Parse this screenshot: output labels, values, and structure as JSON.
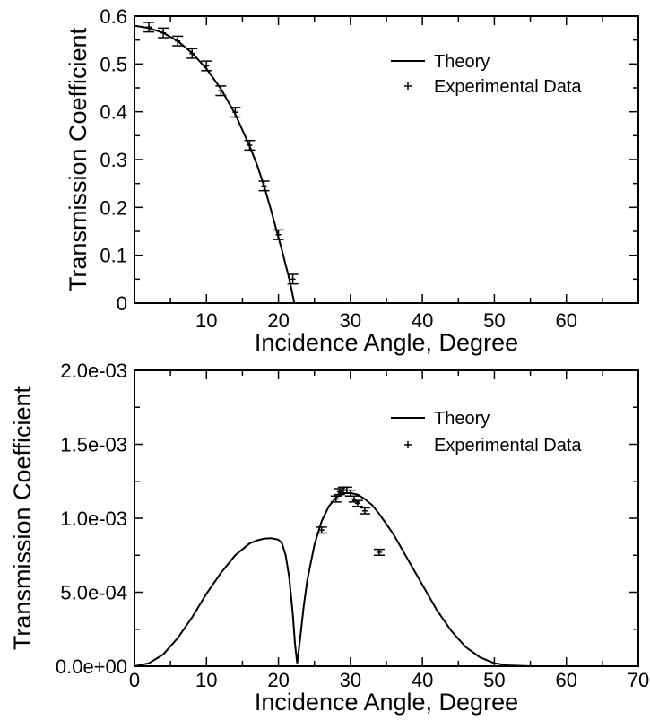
{
  "chart_data": [
    {
      "type": "line",
      "xlabel": "Incidence Angle, Degree",
      "ylabel": "Transmission Coefficient",
      "xlim": [
        0,
        70
      ],
      "ylim": [
        0,
        0.6
      ],
      "x_ticks": [
        10,
        20,
        30,
        40,
        50,
        60
      ],
      "x_tick_labels": [
        "10",
        "20",
        "30",
        "40",
        "50",
        "60"
      ],
      "y_ticks": [
        0,
        0.1,
        0.2,
        0.3,
        0.4,
        0.5,
        0.6
      ],
      "y_tick_labels": [
        "0",
        "0.1",
        "0.2",
        "0.3",
        "0.4",
        "0.5",
        "0.6"
      ],
      "grid": false,
      "legend_position": "top-right",
      "series": [
        {
          "name": "Theory",
          "kind": "line",
          "x": [
            0,
            2,
            4,
            6,
            8,
            10,
            12,
            14,
            16,
            17,
            18,
            19,
            20,
            20.5,
            21,
            21.4,
            21.8,
            22,
            22.2
          ],
          "y": [
            0.58,
            0.575,
            0.565,
            0.548,
            0.523,
            0.49,
            0.448,
            0.395,
            0.328,
            0.29,
            0.245,
            0.193,
            0.137,
            0.11,
            0.08,
            0.057,
            0.03,
            0.015,
            0
          ]
        },
        {
          "name": "Experimental Data",
          "kind": "errorbar",
          "x": [
            2,
            4,
            6,
            8,
            10,
            12,
            14,
            16,
            18,
            20,
            22
          ],
          "y": [
            0.577,
            0.565,
            0.548,
            0.522,
            0.496,
            0.444,
            0.399,
            0.33,
            0.245,
            0.143,
            0.05
          ],
          "err": [
            0.01,
            0.01,
            0.01,
            0.01,
            0.01,
            0.01,
            0.01,
            0.01,
            0.01,
            0.01,
            0.01
          ]
        }
      ]
    },
    {
      "type": "line",
      "xlabel": "Incidence Angle, Degree",
      "ylabel": "Transmission Coefficient",
      "xlim": [
        0,
        70
      ],
      "ylim": [
        0,
        0.002
      ],
      "x_ticks": [
        0,
        10,
        20,
        30,
        40,
        50,
        60,
        70
      ],
      "x_tick_labels": [
        "0",
        "10",
        "20",
        "30",
        "40",
        "50",
        "60",
        "70"
      ],
      "y_ticks": [
        0,
        0.0005,
        0.001,
        0.0015,
        0.002
      ],
      "y_tick_labels": [
        "0.0e+00",
        "5.0e-04",
        "1.0e-03",
        "1.5e-03",
        "2.0e-03"
      ],
      "grid": false,
      "legend_position": "top-right",
      "series": [
        {
          "name": "Theory",
          "kind": "line",
          "x": [
            0,
            2,
            4,
            6,
            8,
            10,
            12,
            14,
            16,
            17,
            18,
            19,
            20,
            20.5,
            21,
            21.5,
            22,
            22.3,
            22.6,
            23,
            23.5,
            24,
            25,
            26,
            27,
            28,
            29,
            30,
            31,
            32,
            33,
            34,
            35,
            36,
            38,
            40,
            42,
            44,
            46,
            48,
            50,
            52,
            55,
            60,
            70
          ],
          "y": [
            0,
            2e-05,
            8e-05,
            0.00019,
            0.00033,
            0.00049,
            0.00063,
            0.00075,
            0.00083,
            0.00085,
            0.000862,
            0.000865,
            0.000855,
            0.00083,
            0.00075,
            0.0006,
            0.00035,
            0.00015,
            2e-05,
            0.00018,
            0.0004,
            0.00058,
            0.00082,
            0.00098,
            0.00108,
            0.00114,
            0.00117,
            0.00117,
            0.00116,
            0.00113,
            0.00109,
            0.00103,
            0.00096,
            0.00089,
            0.00072,
            0.00055,
            0.00038,
            0.00024,
            0.00013,
            6e-05,
            2e-05,
            5e-06,
            0,
            0,
            0
          ]
        },
        {
          "name": "Experimental Data",
          "kind": "errorbar",
          "x": [
            26,
            28,
            28.5,
            29,
            29.5,
            30,
            30.5,
            31,
            32,
            34
          ],
          "y": [
            0.00092,
            0.00113,
            0.00118,
            0.00119,
            0.00119,
            0.00117,
            0.00113,
            0.0011,
            0.00105,
            0.00077
          ],
          "err": [
            2e-05,
            2e-05,
            2e-05,
            2e-05,
            2e-05,
            2e-05,
            2e-05,
            2e-05,
            2e-05,
            2e-05
          ]
        }
      ]
    }
  ]
}
